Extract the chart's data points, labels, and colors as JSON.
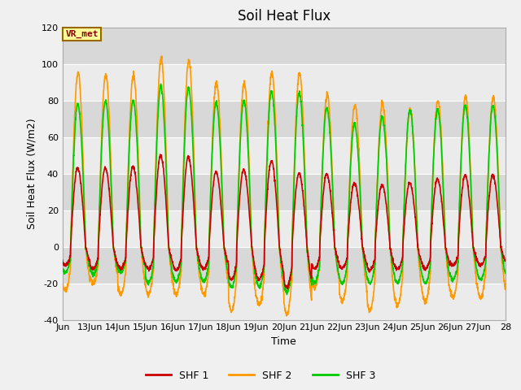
{
  "title": "Soil Heat Flux",
  "ylabel": "Soil Heat Flux (W/m2)",
  "xlabel": "Time",
  "ylim": [
    -40,
    120
  ],
  "xlim_start": 12,
  "xlim_end": 28,
  "xtick_labels": [
    "Jun",
    "13Jun",
    "14Jun",
    "15Jun",
    "16Jun",
    "17Jun",
    "18Jun",
    "19Jun",
    "20Jun",
    "21Jun",
    "22Jun",
    "23Jun",
    "24Jun",
    "25Jun",
    "26Jun",
    "27Jun",
    "28"
  ],
  "xtick_positions": [
    12,
    13,
    14,
    15,
    16,
    17,
    18,
    19,
    20,
    21,
    22,
    23,
    24,
    25,
    26,
    27,
    28
  ],
  "ytick_positions": [
    -40,
    -20,
    0,
    20,
    40,
    60,
    80,
    100,
    120
  ],
  "ytick_labels": [
    "-40",
    "-20",
    "0",
    "20",
    "40",
    "60",
    "80",
    "100",
    "120"
  ],
  "shf1_color": "#cc0000",
  "shf2_color": "#ff9900",
  "shf3_color": "#00cc00",
  "bg_light": "#ebebeb",
  "bg_dark": "#d8d8d8",
  "grid_color": "#ffffff",
  "annotation_text": "VR_met",
  "annotation_color": "#8b0000",
  "annotation_bg": "#ffff99",
  "legend_entries": [
    "SHF 1",
    "SHF 2",
    "SHF 3"
  ],
  "line_width": 1.2,
  "title_fontsize": 12,
  "label_fontsize": 9,
  "tick_fontsize": 8,
  "band_yticks": [
    -40,
    -20,
    0,
    20,
    40,
    60,
    80,
    100,
    120
  ],
  "shf1_day_amps": [
    43,
    43,
    44,
    50,
    49,
    41,
    42,
    47,
    40,
    40,
    35,
    34,
    35,
    37,
    39
  ],
  "shf2_day_amps": [
    95,
    94,
    94,
    103,
    102,
    90,
    90,
    95,
    95,
    83,
    78,
    78,
    75,
    80,
    82
  ],
  "shf3_day_amps": [
    78,
    80,
    80,
    88,
    87,
    79,
    80,
    85,
    84,
    76,
    67,
    71,
    75,
    75,
    77
  ],
  "shf1_day_troughs": [
    -10,
    -12,
    -12,
    -12,
    -13,
    -12,
    -18,
    -18,
    -22,
    -12,
    -12,
    -13,
    -12,
    -12,
    -10
  ],
  "shf2_day_troughs": [
    -24,
    -20,
    -26,
    -26,
    -26,
    -26,
    -35,
    -32,
    -37,
    -22,
    -30,
    -35,
    -32,
    -30,
    -28
  ],
  "shf3_day_troughs": [
    -14,
    -15,
    -14,
    -20,
    -19,
    -19,
    -22,
    -22,
    -25,
    -20,
    -20,
    -20,
    -20,
    -20,
    -18
  ]
}
